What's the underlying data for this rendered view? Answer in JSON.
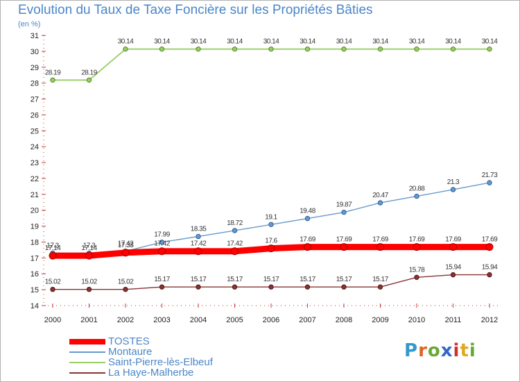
{
  "title": "Evolution du Taux de Taxe Foncière sur les Propriétés Bâties",
  "unit_label": "(en %)",
  "logo_text": "Proxiti",
  "chart_data": {
    "type": "line",
    "title": "Evolution du Taux de Taxe Foncière sur les Propriétés Bâties",
    "ylabel": "(en %)",
    "xlabel": "",
    "x": [
      "2000",
      "2001",
      "2002",
      "2003",
      "2004",
      "2005",
      "2006",
      "2007",
      "2008",
      "2009",
      "2010",
      "2011",
      "2012"
    ],
    "ylim": [
      14,
      31
    ],
    "yticks": [
      14,
      15,
      16,
      17,
      18,
      19,
      20,
      21,
      22,
      23,
      24,
      25,
      26,
      27,
      28,
      29,
      30,
      31
    ],
    "grid": false,
    "legend_position": "bottom-left",
    "series": [
      {
        "name": "TOSTES",
        "color": "#ff0000",
        "values": [
          17.14,
          17.14,
          17.33,
          17.42,
          17.42,
          17.42,
          17.6,
          17.69,
          17.69,
          17.69,
          17.69,
          17.69,
          17.69
        ],
        "labels": [
          "17.14",
          "17.14",
          "17.33",
          "17.42",
          "17.42",
          "17.42",
          "17.6",
          "17.69",
          "17.69",
          "17.69",
          "17.69",
          "17.69",
          "17.69"
        ]
      },
      {
        "name": "Montaure",
        "color": "#6699cc",
        "values": [
          17.3,
          17.3,
          17.42,
          17.99,
          18.35,
          18.72,
          19.1,
          19.48,
          19.87,
          20.47,
          20.88,
          21.3,
          21.73
        ],
        "labels": [
          "17.3",
          "17.3",
          "17.42",
          "17.99",
          "18.35",
          "18.72",
          "19.1",
          "19.48",
          "19.87",
          "20.47",
          "20.88",
          "21.3",
          "21.73"
        ]
      },
      {
        "name": "Saint-Pierre-lès-Elbeuf",
        "color": "#99cc66",
        "values": [
          28.19,
          28.19,
          30.14,
          30.14,
          30.14,
          30.14,
          30.14,
          30.14,
          30.14,
          30.14,
          30.14,
          30.14,
          30.14
        ],
        "labels": [
          "28.19",
          "28.19",
          "30.14",
          "30.14",
          "30.14",
          "30.14",
          "30.14",
          "30.14",
          "30.14",
          "30.14",
          "30.14",
          "30.14",
          "30.14"
        ]
      },
      {
        "name": "La Haye-Malherbe",
        "color": "#883333",
        "values": [
          15.02,
          15.02,
          15.02,
          15.17,
          15.17,
          15.17,
          15.17,
          15.17,
          15.17,
          15.17,
          15.78,
          15.94,
          15.94
        ],
        "labels": [
          "15.02",
          "15.02",
          "15.02",
          "15.17",
          "15.17",
          "15.17",
          "15.17",
          "15.17",
          "15.17",
          "15.17",
          "15.78",
          "15.94",
          "15.94"
        ]
      }
    ]
  }
}
